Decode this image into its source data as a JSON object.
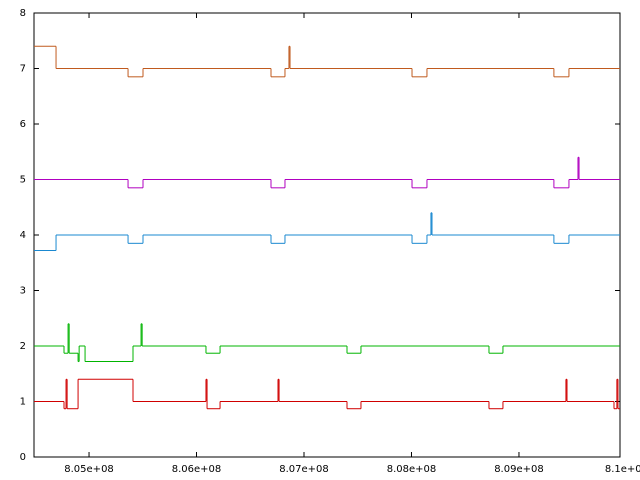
{
  "chart_data": {
    "type": "step",
    "xlim": [
      804488000,
      809940000
    ],
    "ylim": [
      0,
      8
    ],
    "yticks": [
      0,
      1,
      2,
      3,
      4,
      5,
      6,
      7,
      8
    ],
    "xticks": [
      {
        "value": 805000000,
        "label": "8.05e+08"
      },
      {
        "value": 806000000,
        "label": "8.06e+08"
      },
      {
        "value": 807000000,
        "label": "8.07e+08"
      },
      {
        "value": 808000000,
        "label": "8.08e+08"
      },
      {
        "value": 809000000,
        "label": "8.09e+08"
      },
      {
        "value": 810000000,
        "label": "8.1e+08"
      }
    ],
    "series": [
      {
        "color": "#d00000",
        "x": [
          804488000,
          804767000,
          804786000,
          804796000,
          804898000,
          805409000,
          806088000,
          806098000,
          806219000,
          806758000,
          806768000,
          807400000,
          807530000,
          808721000,
          808851000,
          809437000,
          809447000,
          809884000,
          809911000,
          809921000,
          809940000
        ],
        "values": [
          1,
          0.87,
          1.4,
          0.87,
          1.4,
          1,
          1.4,
          0.87,
          1,
          1.4,
          1,
          0.87,
          1,
          0.87,
          1,
          1.4,
          1,
          0.87,
          1.4,
          0.87,
          0.87
        ]
      },
      {
        "color": "#00b400",
        "x": [
          804488000,
          804767000,
          804805000,
          804815000,
          804898000,
          804908000,
          804963000,
          805409000,
          805484000,
          805494000,
          806088000,
          806219000,
          807400000,
          807530000,
          808721000,
          808851000,
          809940000
        ],
        "values": [
          2,
          1.87,
          2.4,
          1.87,
          1.72,
          2,
          1.72,
          2,
          2.4,
          2,
          1.87,
          2,
          1.87,
          2,
          1.87,
          2,
          2
        ]
      },
      {
        "color": "#1a88d0",
        "x": [
          804488000,
          804693000,
          805363000,
          805502000,
          806693000,
          806823000,
          808005000,
          808144000,
          808181000,
          808191000,
          809325000,
          809465000,
          809940000
        ],
        "values": [
          3.72,
          4,
          3.85,
          4,
          3.85,
          4,
          3.85,
          4,
          4.4,
          4,
          3.85,
          4,
          4
        ]
      },
      {
        "color": "#b000c0",
        "x": [
          804488000,
          805363000,
          805502000,
          806693000,
          806823000,
          808005000,
          808144000,
          809325000,
          809465000,
          809549000,
          809559000,
          809940000
        ],
        "values": [
          5,
          4.85,
          5,
          4.85,
          5,
          4.85,
          5,
          4.85,
          5,
          5.4,
          5,
          5
        ]
      },
      {
        "color": "#c05a1e",
        "x": [
          804488000,
          804693000,
          805363000,
          805502000,
          806693000,
          806823000,
          806860000,
          806870000,
          808005000,
          808144000,
          809325000,
          809465000,
          809940000
        ],
        "values": [
          7.4,
          7,
          6.85,
          7,
          6.85,
          7,
          7.4,
          7,
          6.85,
          7,
          6.85,
          7,
          7
        ]
      }
    ]
  }
}
